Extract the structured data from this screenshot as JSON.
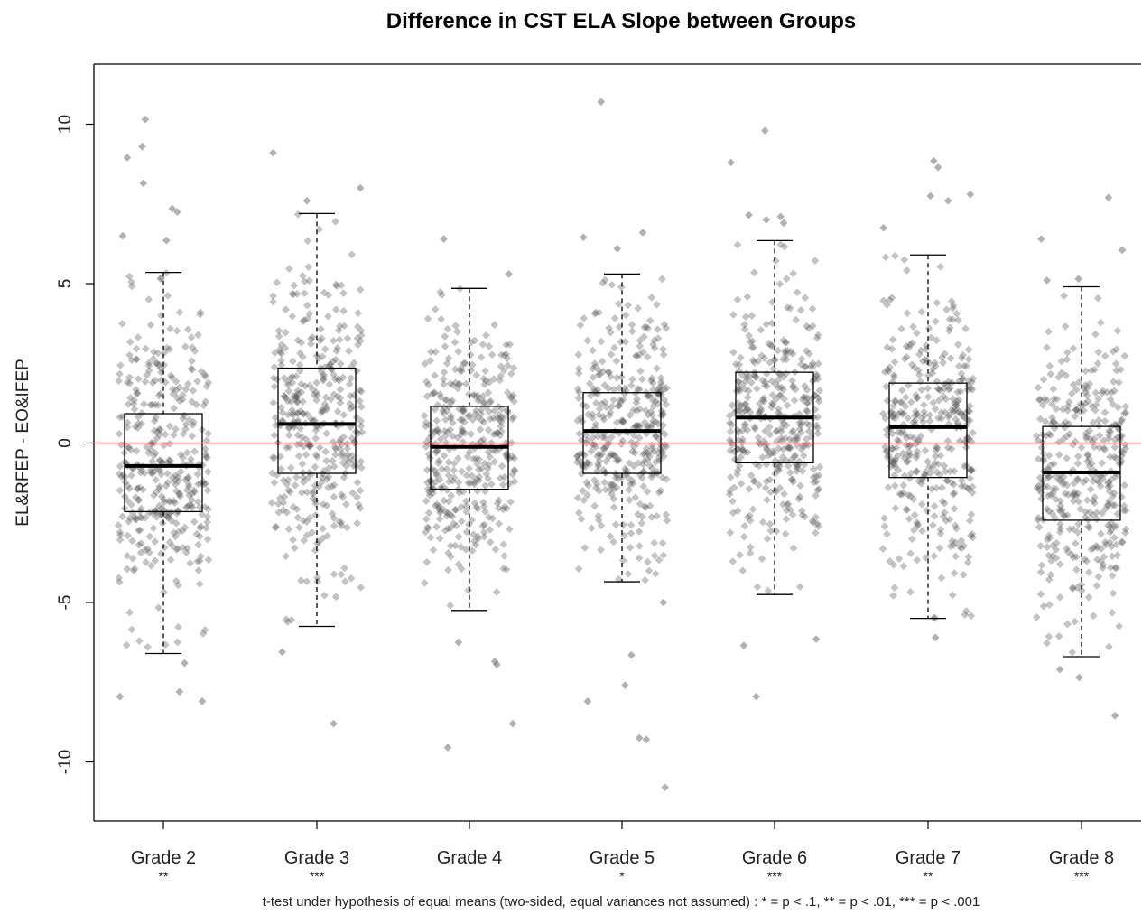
{
  "chart_data": {
    "type": "box",
    "title": "Difference in CST ELA Slope between Groups",
    "xlabel": "",
    "ylabel": "EL&RFEP - EO&IFEP",
    "ylim": [
      -11.9,
      11.9
    ],
    "yticks": [
      -10,
      -5,
      0,
      5,
      10
    ],
    "reference_line": {
      "y": 0,
      "color": "#c0504d"
    },
    "footnote": "t-test under hypothesis of equal means (two-sided, equal variances not assumed) : * = p < .1,    ** = p < .01,     *** = p < .001",
    "categories": [
      "Grade 2",
      "Grade 3",
      "Grade 4",
      "Grade 5",
      "Grade 6",
      "Grade 7",
      "Grade 8"
    ],
    "significance": [
      "**",
      "***",
      "",
      "*",
      "***",
      "**",
      "***"
    ],
    "boxes": [
      {
        "whisker_low": -6.6,
        "q1": -2.15,
        "median": -0.72,
        "q3": 0.92,
        "whisker_high": 5.35
      },
      {
        "whisker_low": -5.75,
        "q1": -0.95,
        "median": 0.6,
        "q3": 2.35,
        "whisker_high": 7.2
      },
      {
        "whisker_low": -5.25,
        "q1": -1.45,
        "median": -0.12,
        "q3": 1.15,
        "whisker_high": 4.85
      },
      {
        "whisker_low": -4.35,
        "q1": -0.95,
        "median": 0.38,
        "q3": 1.58,
        "whisker_high": 5.3
      },
      {
        "whisker_low": -4.75,
        "q1": -0.62,
        "median": 0.8,
        "q3": 2.22,
        "whisker_high": 6.35
      },
      {
        "whisker_low": -5.5,
        "q1": -1.08,
        "median": 0.5,
        "q3": 1.88,
        "whisker_high": 5.9
      },
      {
        "whisker_low": -6.7,
        "q1": -2.42,
        "median": -0.92,
        "q3": 0.52,
        "whisker_high": 4.9
      }
    ],
    "point_style": {
      "color": "#555555",
      "opacity": 0.35,
      "marker": "diamond"
    },
    "points_per_group": 380,
    "outliers": [
      [
        10.15,
        9.3,
        8.95,
        8.15,
        7.35,
        7.25,
        6.5,
        6.35,
        -6.9,
        -7.8,
        -7.95,
        -8.1
      ],
      [
        9.1,
        8.0,
        7.6,
        -6.55,
        -8.8
      ],
      [
        6.4,
        5.3,
        -6.25,
        -6.85,
        -6.95,
        -8.8,
        -9.55
      ],
      [
        10.7,
        6.6,
        6.45,
        6.1,
        -5.0,
        -6.65,
        -7.6,
        -8.1,
        -9.25,
        -9.3,
        -10.8
      ],
      [
        9.8,
        8.8,
        7.15,
        7.1,
        7.0,
        6.9,
        -6.15,
        -6.35,
        -7.95
      ],
      [
        8.85,
        8.65,
        7.8,
        7.75,
        7.6,
        6.75,
        -6.1
      ],
      [
        7.7,
        6.4,
        6.05,
        5.15,
        5.1,
        -7.1,
        -7.35,
        -8.55
      ]
    ]
  }
}
